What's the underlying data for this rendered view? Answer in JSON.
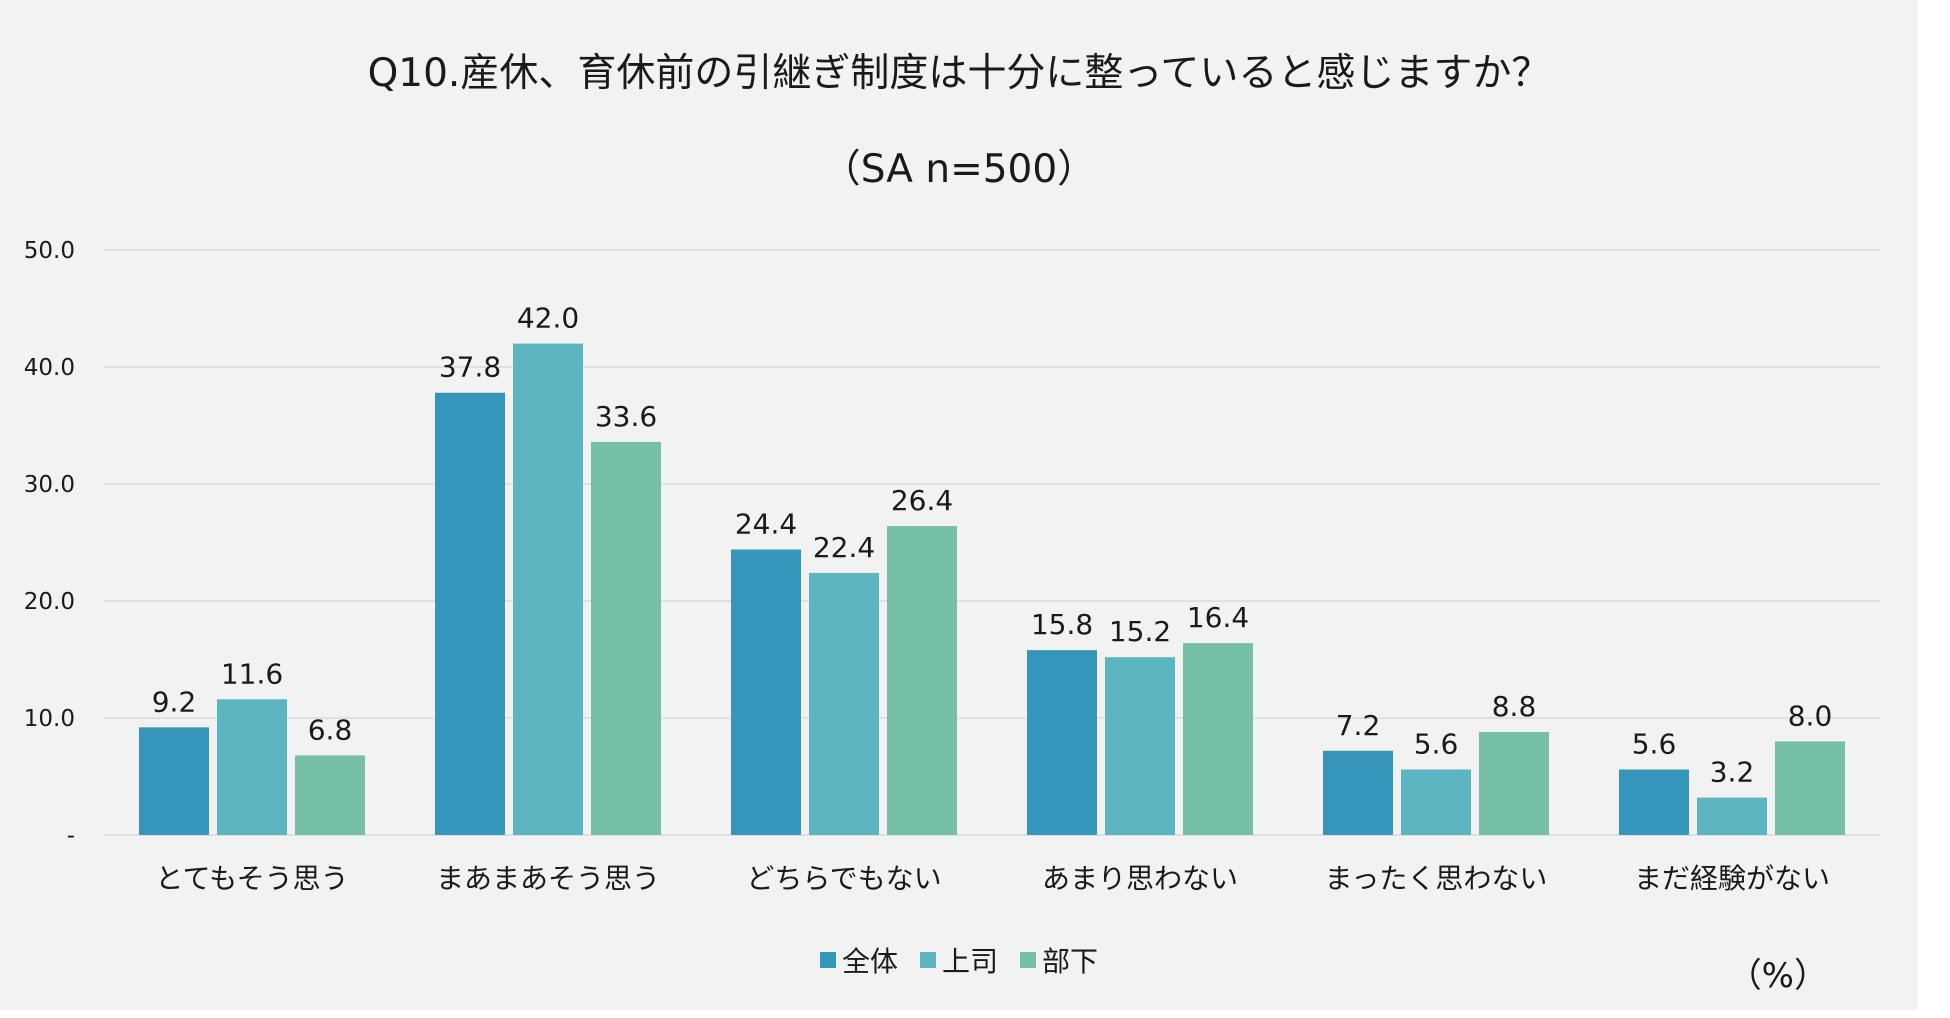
{
  "chart_data": {
    "type": "bar",
    "title": "Q10.産休、育休前の引継ぎ制度は十分に整っていると感じますか？",
    "subtitle": "（SA n=500）",
    "unit": "（%）",
    "xlabel": "",
    "ylabel": "",
    "ylim": [
      0,
      50
    ],
    "yticks": [
      {
        "value": 0,
        "label": "-"
      },
      {
        "value": 10,
        "label": "10.0"
      },
      {
        "value": 20,
        "label": "20.0"
      },
      {
        "value": 30,
        "label": "30.0"
      },
      {
        "value": 40,
        "label": "40.0"
      },
      {
        "value": 50,
        "label": "50.0"
      }
    ],
    "grid": true,
    "legend_position": "bottom",
    "categories": [
      "とてもそう思う",
      "まあまあそう思う",
      "どちらでもない",
      "あまり思わない",
      "まったく思わない",
      "まだ経験がない"
    ],
    "series": [
      {
        "name": "全体",
        "color": "#3695bb",
        "values": [
          9.2,
          37.8,
          24.4,
          15.8,
          7.2,
          5.6
        ],
        "labels": [
          "9.2",
          "37.8",
          "24.4",
          "15.8",
          "7.2",
          "5.6"
        ]
      },
      {
        "name": "上司",
        "color": "#5bb6c1",
        "values": [
          11.6,
          42.0,
          22.4,
          15.2,
          5.6,
          3.2
        ],
        "labels": [
          "11.6",
          "42.0",
          "22.4",
          "15.2",
          "5.6",
          "3.2"
        ]
      },
      {
        "name": "部下",
        "color": "#76bfa7",
        "values": [
          6.8,
          33.6,
          26.4,
          16.4,
          8.8,
          8.0
        ],
        "labels": [
          "6.8",
          "33.6",
          "26.4",
          "16.4",
          "8.8",
          "8.0"
        ]
      }
    ]
  }
}
